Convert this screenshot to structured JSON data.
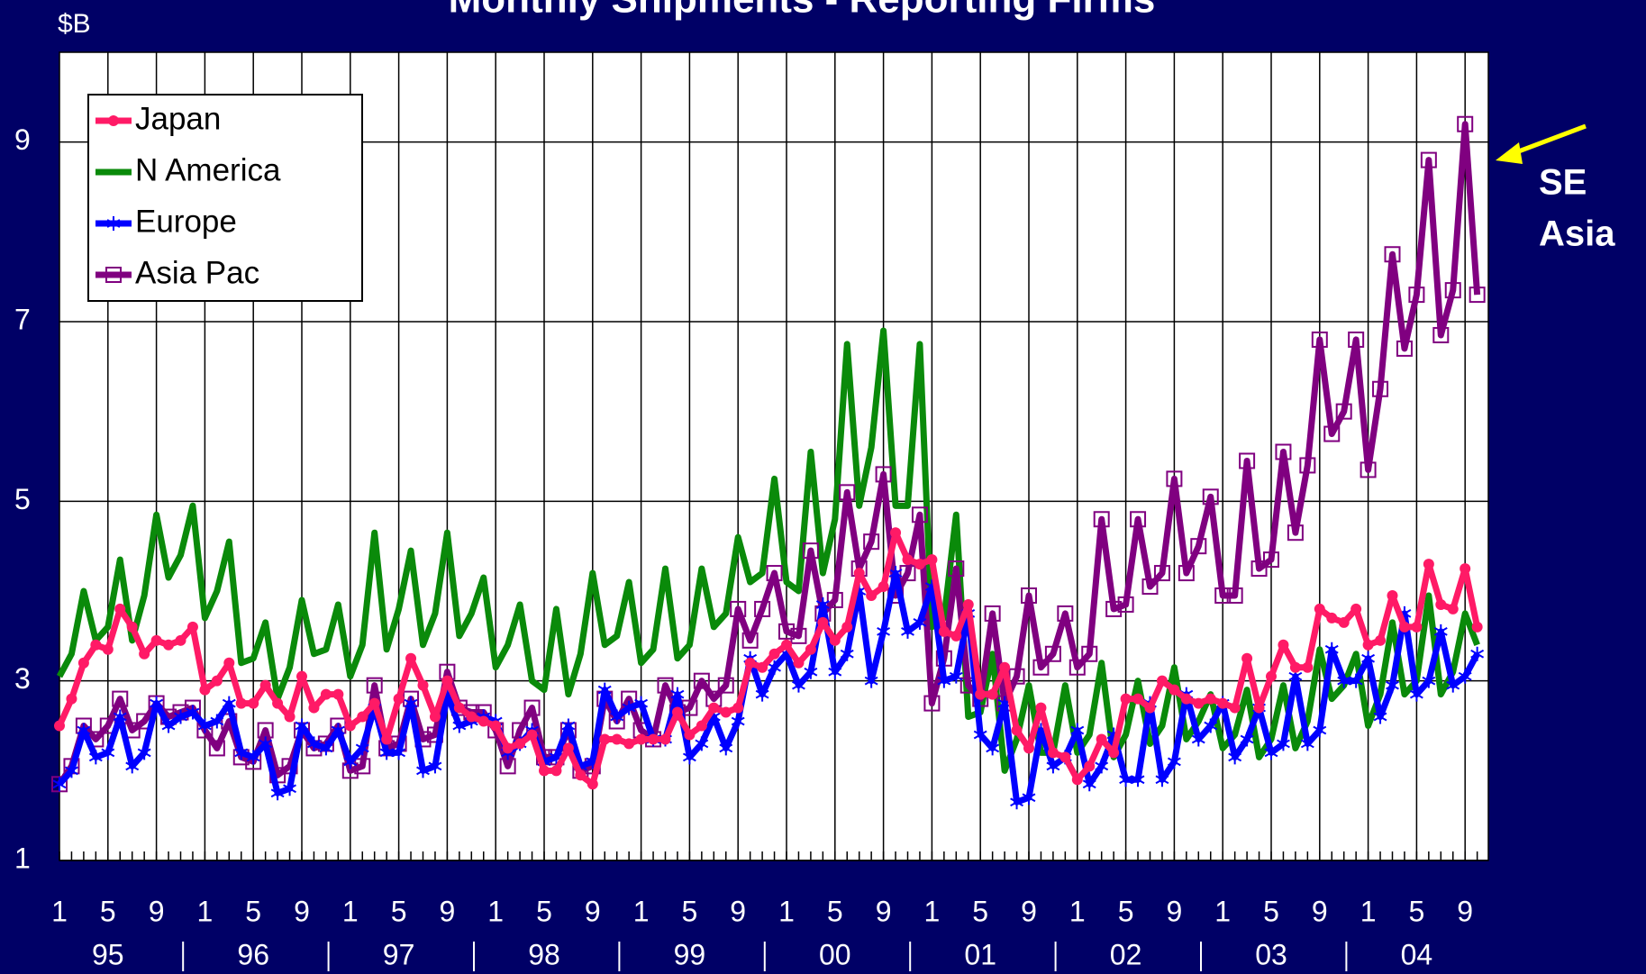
{
  "chart_data": {
    "type": "line",
    "title": "Monthly Shipments - Reporting Firms",
    "ylabel": "$B",
    "annotation": [
      "SE",
      "Asia"
    ],
    "categories": [
      "1",
      null,
      null,
      null,
      "5",
      null,
      null,
      null,
      "9",
      null,
      null,
      null,
      "1",
      null,
      null,
      null,
      "5",
      null,
      null,
      null,
      "9",
      null,
      null,
      null,
      "1",
      null,
      null,
      null,
      "5",
      null,
      null,
      null,
      "9",
      null,
      null,
      null,
      "1",
      null,
      null,
      null,
      "5",
      null,
      null,
      null,
      "9",
      null,
      null,
      null,
      "1",
      null,
      null,
      null,
      "5",
      null,
      null,
      null,
      "9",
      null,
      null,
      null,
      "1",
      null,
      null,
      null,
      "5",
      null,
      null,
      null,
      "9",
      null,
      null,
      null,
      "1",
      null,
      null,
      null,
      "5",
      null,
      null,
      null,
      "9",
      null,
      null,
      null,
      "1",
      null,
      null,
      null,
      "5",
      null,
      null,
      null,
      "9",
      null,
      null,
      null,
      "1",
      null,
      null,
      null,
      "5",
      null,
      null,
      null,
      "9",
      null,
      null,
      null,
      "1",
      null,
      null,
      null,
      "5",
      null,
      null,
      null,
      "9",
      null
    ],
    "years": [
      "95",
      "96",
      "97",
      "98",
      "99",
      "00",
      "01",
      "02",
      "03",
      "04"
    ],
    "ylim": [
      1,
      10
    ],
    "yticks": [
      1,
      3,
      5,
      7,
      9
    ],
    "grid": true,
    "legend": "upper left",
    "series": [
      {
        "name": "N America",
        "color": "#0a8a0a",
        "marker": "none",
        "values": [
          3.05,
          3.3,
          4.0,
          3.45,
          3.6,
          4.35,
          3.45,
          3.95,
          4.85,
          4.15,
          4.4,
          4.95,
          3.7,
          4.0,
          4.55,
          3.2,
          3.25,
          3.65,
          2.8,
          3.15,
          3.9,
          3.3,
          3.35,
          3.85,
          3.05,
          3.4,
          4.65,
          3.35,
          3.8,
          4.45,
          3.4,
          3.75,
          4.65,
          3.5,
          3.75,
          4.15,
          3.15,
          3.4,
          3.85,
          3.0,
          2.9,
          3.8,
          2.85,
          3.3,
          4.2,
          3.4,
          3.5,
          4.1,
          3.2,
          3.35,
          4.25,
          3.25,
          3.4,
          4.25,
          3.6,
          3.75,
          4.6,
          4.1,
          4.2,
          5.25,
          4.1,
          4.0,
          5.55,
          4.2,
          4.8,
          6.75,
          4.95,
          5.6,
          6.9,
          4.95,
          4.95,
          6.75,
          3.6,
          3.7,
          4.85,
          2.6,
          2.65,
          3.3,
          2.0,
          2.35,
          2.95,
          2.2,
          2.2,
          2.95,
          2.2,
          2.4,
          3.2,
          2.15,
          2.4,
          3.0,
          2.3,
          2.5,
          3.15,
          2.35,
          2.55,
          2.85,
          2.25,
          2.4,
          2.9,
          2.15,
          2.35,
          2.95,
          2.25,
          2.55,
          3.35,
          2.8,
          2.95,
          3.3,
          2.5,
          2.85,
          3.65,
          2.85,
          3.0,
          3.95,
          2.85,
          3.1,
          3.75,
          3.4
        ]
      },
      {
        "name": "Asia Pac",
        "color": "#800080",
        "marker": "square",
        "values": [
          1.85,
          2.05,
          2.5,
          2.35,
          2.5,
          2.8,
          2.45,
          2.55,
          2.75,
          2.6,
          2.65,
          2.7,
          2.45,
          2.25,
          2.55,
          2.15,
          2.1,
          2.45,
          1.95,
          2.05,
          2.45,
          2.25,
          2.3,
          2.5,
          2.0,
          2.05,
          2.95,
          2.25,
          2.3,
          2.8,
          2.35,
          2.4,
          3.1,
          2.7,
          2.65,
          2.65,
          2.45,
          2.05,
          2.45,
          2.7,
          2.15,
          2.15,
          2.45,
          2.0,
          2.05,
          2.8,
          2.55,
          2.8,
          2.45,
          2.35,
          2.95,
          2.65,
          2.7,
          3.0,
          2.8,
          2.95,
          3.8,
          3.45,
          3.8,
          4.2,
          3.55,
          3.5,
          4.45,
          3.75,
          3.9,
          5.1,
          4.25,
          4.55,
          5.3,
          3.95,
          4.2,
          4.85,
          2.75,
          3.25,
          4.25,
          2.95,
          2.8,
          3.75,
          2.75,
          3.05,
          3.95,
          3.15,
          3.3,
          3.75,
          3.15,
          3.3,
          4.8,
          3.8,
          3.85,
          4.8,
          4.05,
          4.2,
          5.25,
          4.2,
          4.5,
          5.05,
          3.95,
          3.95,
          5.45,
          4.25,
          4.35,
          5.55,
          4.65,
          5.4,
          6.8,
          5.75,
          6.0,
          6.8,
          5.35,
          6.25,
          7.75,
          6.7,
          7.3,
          8.8,
          6.85,
          7.35,
          9.2,
          7.3
        ]
      },
      {
        "name": "Europe",
        "color": "#0000ff",
        "marker": "star",
        "values": [
          1.85,
          2.0,
          2.45,
          2.15,
          2.2,
          2.6,
          2.05,
          2.2,
          2.75,
          2.5,
          2.6,
          2.65,
          2.5,
          2.55,
          2.75,
          2.2,
          2.15,
          2.3,
          1.75,
          1.8,
          2.5,
          2.3,
          2.25,
          2.45,
          2.1,
          2.25,
          2.7,
          2.2,
          2.2,
          2.75,
          2.0,
          2.05,
          2.85,
          2.5,
          2.55,
          2.6,
          2.55,
          2.2,
          2.3,
          2.45,
          2.1,
          2.15,
          2.5,
          2.05,
          2.1,
          2.9,
          2.6,
          2.7,
          2.75,
          2.35,
          2.35,
          2.85,
          2.15,
          2.3,
          2.6,
          2.25,
          2.55,
          3.25,
          2.85,
          3.15,
          3.3,
          2.95,
          3.1,
          3.85,
          3.1,
          3.3,
          4.0,
          3.0,
          3.55,
          4.2,
          3.55,
          3.65,
          4.05,
          3.0,
          3.05,
          3.75,
          2.4,
          2.25,
          2.75,
          1.65,
          1.7,
          2.45,
          2.05,
          2.15,
          2.45,
          1.85,
          2.05,
          2.4,
          1.9,
          1.9,
          2.75,
          1.9,
          2.1,
          2.85,
          2.35,
          2.5,
          2.75,
          2.15,
          2.35,
          2.7,
          2.2,
          2.3,
          3.05,
          2.3,
          2.45,
          3.35,
          3.0,
          3.0,
          3.25,
          2.6,
          2.95,
          3.75,
          2.85,
          3.0,
          3.55,
          2.95,
          3.05,
          3.3
        ]
      },
      {
        "name": "Japan",
        "color": "#ff1a66",
        "marker": "circle",
        "values": [
          2.5,
          2.8,
          3.2,
          3.4,
          3.35,
          3.8,
          3.6,
          3.3,
          3.45,
          3.4,
          3.45,
          3.6,
          2.9,
          3.0,
          3.2,
          2.75,
          2.75,
          2.95,
          2.75,
          2.6,
          3.05,
          2.7,
          2.85,
          2.85,
          2.5,
          2.6,
          2.75,
          2.35,
          2.8,
          3.25,
          2.95,
          2.6,
          3.0,
          2.7,
          2.6,
          2.55,
          2.5,
          2.25,
          2.3,
          2.4,
          2.0,
          2.0,
          2.25,
          1.95,
          1.85,
          2.35,
          2.35,
          2.3,
          2.35,
          2.35,
          2.35,
          2.65,
          2.4,
          2.5,
          2.7,
          2.65,
          2.7,
          3.2,
          3.15,
          3.3,
          3.4,
          3.2,
          3.35,
          3.65,
          3.45,
          3.6,
          4.2,
          3.95,
          4.05,
          4.65,
          4.35,
          4.3,
          4.35,
          3.55,
          3.5,
          3.85,
          2.85,
          2.85,
          3.15,
          2.45,
          2.25,
          2.7,
          2.2,
          2.15,
          1.9,
          2.05,
          2.35,
          2.2,
          2.8,
          2.8,
          2.7,
          3.0,
          2.9,
          2.8,
          2.75,
          2.8,
          2.75,
          2.7,
          3.25,
          2.7,
          3.05,
          3.4,
          3.15,
          3.15,
          3.8,
          3.7,
          3.65,
          3.8,
          3.4,
          3.45,
          3.95,
          3.6,
          3.6,
          4.3,
          3.85,
          3.8,
          4.25,
          3.6
        ]
      }
    ],
    "legend_order": [
      3,
      0,
      2,
      1
    ]
  }
}
